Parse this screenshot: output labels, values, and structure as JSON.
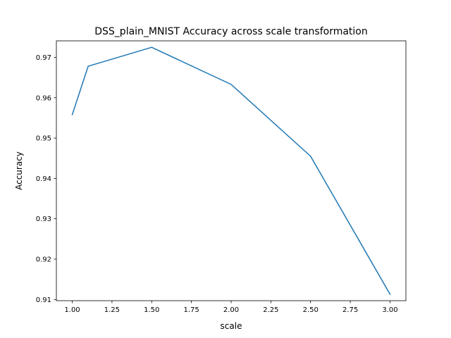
{
  "chart_data": {
    "type": "line",
    "title": "DSS_plain_MNIST Accuracy across scale transformation",
    "xlabel": "scale",
    "ylabel": "Accuracy",
    "xlim": [
      0.9,
      3.1
    ],
    "ylim": [
      0.9097,
      0.9741
    ],
    "xticks": [
      1.0,
      1.25,
      1.5,
      1.75,
      2.0,
      2.25,
      2.5,
      2.75,
      3.0
    ],
    "xtick_labels": [
      "1.00",
      "1.25",
      "1.50",
      "1.75",
      "2.00",
      "2.25",
      "2.50",
      "2.75",
      "3.00"
    ],
    "yticks": [
      0.91,
      0.92,
      0.93,
      0.94,
      0.95,
      0.96,
      0.97
    ],
    "ytick_labels": [
      "0.91",
      "0.92",
      "0.93",
      "0.94",
      "0.95",
      "0.96",
      "0.97"
    ],
    "grid": false,
    "series": [
      {
        "color": "#1f77b4",
        "x": [
          1.0,
          1.1,
          1.5,
          2.0,
          2.5,
          3.0
        ],
        "y": [
          0.9558,
          0.9678,
          0.9725,
          0.9633,
          0.9455,
          0.9113
        ]
      }
    ]
  }
}
